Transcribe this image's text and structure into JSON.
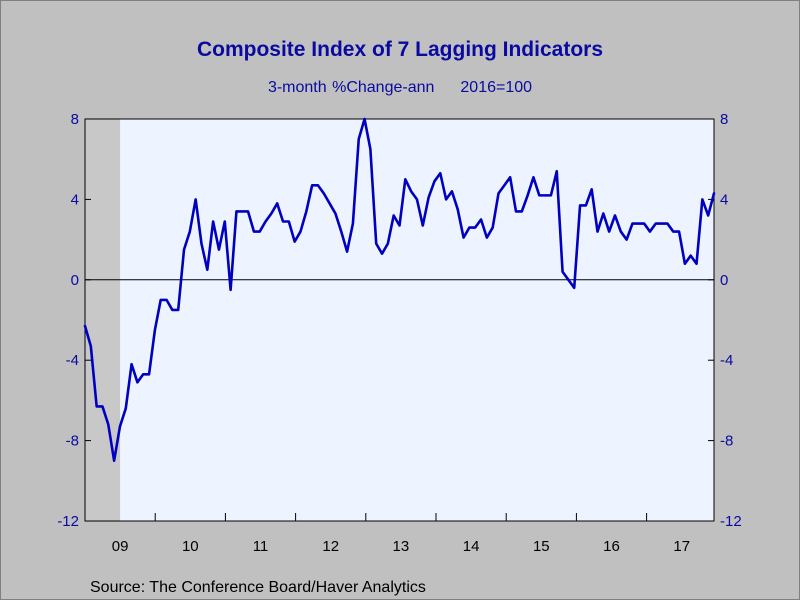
{
  "chart_data": {
    "type": "line",
    "title": "Composite Index of 7 Lagging Indicators",
    "subtitle_left": "3-month %Change-ann",
    "subtitle_right": "2016=100",
    "source": "Source:  The Conference Board/Haver Analytics",
    "ylim": [
      -12,
      8
    ],
    "yticks": [
      8,
      4,
      0,
      -4,
      -8,
      -12
    ],
    "xlim": [
      2009.0,
      2017.96
    ],
    "xticks": [
      "09",
      "10",
      "11",
      "12",
      "13",
      "14",
      "15",
      "16",
      "17"
    ],
    "recession_band": [
      2009.0,
      2009.5
    ],
    "zero_line": true,
    "colors": {
      "line": "#0000c0",
      "plot_bg": "#eef4ff",
      "recession": "#c8c8c8",
      "frame_bg": "#c0c0c0",
      "text": "#0a0aa0"
    },
    "series": [
      {
        "values": [
          -2.3,
          -3.3,
          -6.3,
          -6.3,
          -7.2,
          -9.0,
          -7.3,
          -6.4,
          -4.2,
          -5.1,
          -4.7,
          -4.7,
          -2.5,
          -1.0,
          -1.0,
          -1.5,
          -1.5,
          1.5,
          2.4,
          4.0,
          1.8,
          0.5,
          2.9,
          1.5,
          2.9,
          -0.5,
          3.4,
          3.4,
          3.4,
          2.4,
          2.4,
          2.9,
          3.3,
          3.8,
          2.9,
          2.9,
          1.9,
          2.4,
          3.4,
          4.7,
          4.7,
          4.3,
          3.8,
          3.3,
          2.4,
          1.4,
          2.8,
          7.0,
          8.0,
          6.5,
          1.8,
          1.3,
          1.8,
          3.2,
          2.7,
          5.0,
          4.4,
          4.0,
          2.7,
          4.1,
          4.9,
          5.3,
          4.0,
          4.4,
          3.5,
          2.1,
          2.6,
          2.6,
          3.0,
          2.1,
          2.6,
          4.3,
          4.7,
          5.1,
          3.4,
          3.4,
          4.2,
          5.1,
          4.2,
          4.2,
          4.2,
          5.4,
          0.4,
          0.0,
          -0.4,
          3.7,
          3.7,
          4.5,
          2.4,
          3.3,
          2.4,
          3.2,
          2.4,
          2.0,
          2.8,
          2.8,
          2.8,
          2.4,
          2.8,
          2.8,
          2.8,
          2.4,
          2.4,
          0.8,
          1.2,
          0.8,
          4.0,
          3.2,
          4.3
        ]
      }
    ]
  }
}
